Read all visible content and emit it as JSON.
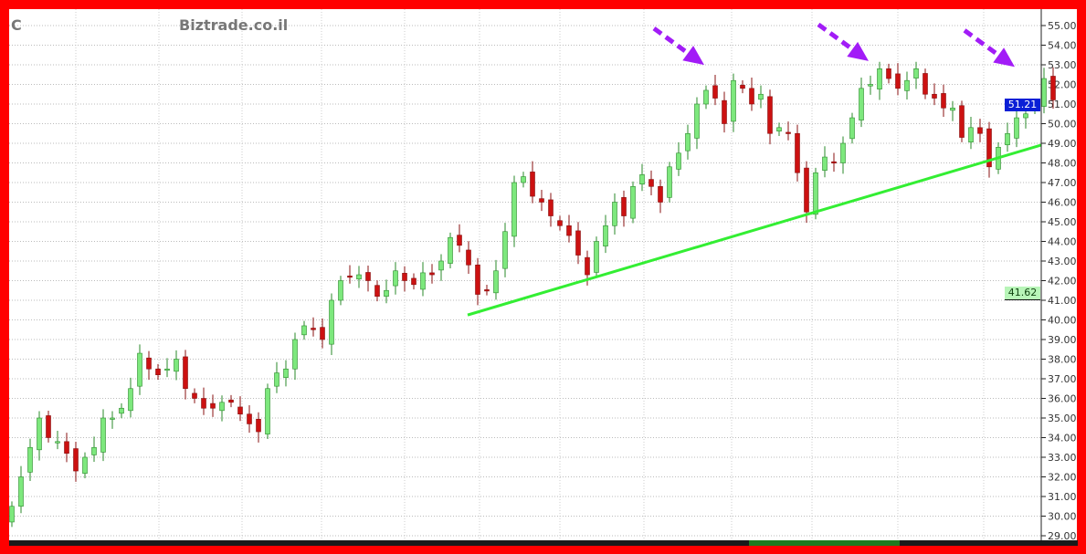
{
  "header": {
    "symbol": "C",
    "watermark": "Biztrade.co.il"
  },
  "price_tags": {
    "last": {
      "value": "51.21",
      "color": "#0a1fd6"
    },
    "trendline": {
      "value": "41.62",
      "color": "#b8f5b8"
    }
  },
  "colors": {
    "up": "#7de87d",
    "down": "#cc1111",
    "trendline": "#33ee33",
    "arrows": "#a21cf7",
    "frame": "#ff0000"
  },
  "chart_data": {
    "type": "candlestick",
    "title": "",
    "ylim": [
      28.6,
      55.6
    ],
    "yticks": [
      "55.00",
      "54.00",
      "53.00",
      "52.00",
      "51.00",
      "50.00",
      "49.00",
      "48.00",
      "47.00",
      "46.00",
      "45.00",
      "44.00",
      "43.00",
      "42.00",
      "41.00",
      "40.00",
      "39.00",
      "38.00",
      "37.00",
      "36.00",
      "35.00",
      "34.00",
      "33.00",
      "32.00",
      "31.00",
      "30.00",
      "29.00"
    ],
    "grid": true,
    "close": [
      30.5,
      32,
      33.5,
      35,
      34,
      33.8,
      33.2,
      32.3,
      33,
      33.5,
      35,
      35,
      35.5,
      36.5,
      38.3,
      37.5,
      37.2,
      37.5,
      38,
      36.5,
      36,
      35.5,
      35.5,
      35.8,
      35.8,
      35.2,
      34.7,
      34.3,
      36.5,
      37.3,
      37.5,
      39,
      39.7,
      39.5,
      39,
      41,
      42,
      42.2,
      42.3,
      42,
      41.2,
      41.5,
      42.5,
      42,
      41.8,
      42.4,
      42.3,
      43,
      44.2,
      43.8,
      42.8,
      41.3,
      41.5,
      42.5,
      44.5,
      47,
      47.3,
      46.3,
      46,
      45.3,
      44.8,
      44.3,
      43.3,
      42.3,
      44,
      44.8,
      46,
      45.3,
      46.8,
      47.4,
      46.8,
      46,
      47.8,
      48.5,
      49.5,
      51,
      51.7,
      51.3,
      50,
      52.2,
      51.8,
      51,
      51.5,
      49.5,
      49.8,
      49.5,
      47.5,
      45.5,
      47.5,
      48.3,
      48,
      49,
      50.3,
      51.8,
      52,
      52.8,
      52.3,
      51.8,
      52.2,
      52.8,
      51.5,
      51.3,
      50.8,
      50.8,
      49.3,
      49.8,
      49.5,
      47.8,
      48.8,
      49.5,
      50.3,
      50.5,
      51,
      52.3,
      51.21
    ],
    "trendline": {
      "from": {
        "index": 50,
        "price": 40.25
      },
      "to": {
        "index": 113,
        "price": 48.95
      }
    },
    "annotations": [
      {
        "type": "arrow",
        "target_index": 76,
        "target_price": 52.9
      },
      {
        "type": "arrow",
        "target_index": 94,
        "target_price": 53.1
      },
      {
        "type": "arrow",
        "target_index": 110,
        "target_price": 52.8
      }
    ]
  }
}
